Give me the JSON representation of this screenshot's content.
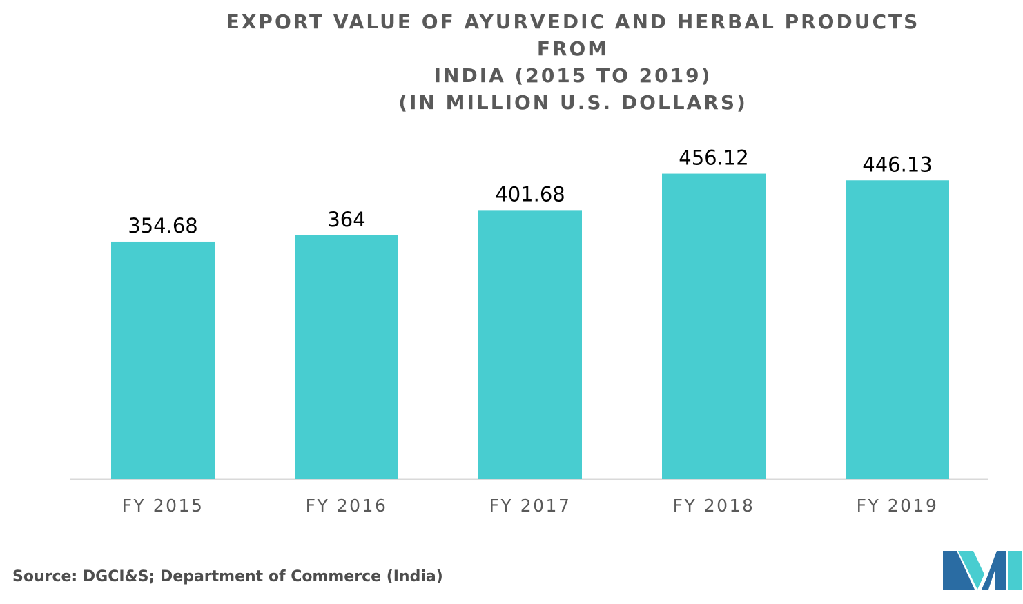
{
  "chart_title": {
    "line1": "EXPORT VALUE OF AYURVEDIC AND HERBAL PRODUCTS FROM",
    "line2": "INDIA (2015 TO 2019)",
    "line3": "(IN MILLION U.S. DOLLARS)"
  },
  "chart_data": {
    "type": "bar",
    "title": "EXPORT VALUE OF AYURVEDIC AND HERBAL PRODUCTS FROM INDIA (2015 TO 2019) (IN MILLION U.S. DOLLARS)",
    "categories": [
      "FY 2015",
      "FY 2016",
      "FY 2017",
      "FY 2018",
      "FY 2019"
    ],
    "values": [
      354.68,
      364,
      401.68,
      456.12,
      446.13
    ],
    "value_labels": [
      "354.68",
      "364",
      "401.68",
      "456.12",
      "446.13"
    ],
    "xlabel": "",
    "ylabel": "",
    "ylim": [
      0,
      700
    ],
    "grid": false,
    "legend": "none",
    "bar_color": "#48CDD0",
    "axis_color": "#D9D9D9"
  },
  "source_text": "Source: DGCI&S; Department of Commerce (India)",
  "logo": {
    "icon": "brand-logo-icon",
    "colors": [
      "#2A6CA3",
      "#48CDD0"
    ]
  }
}
